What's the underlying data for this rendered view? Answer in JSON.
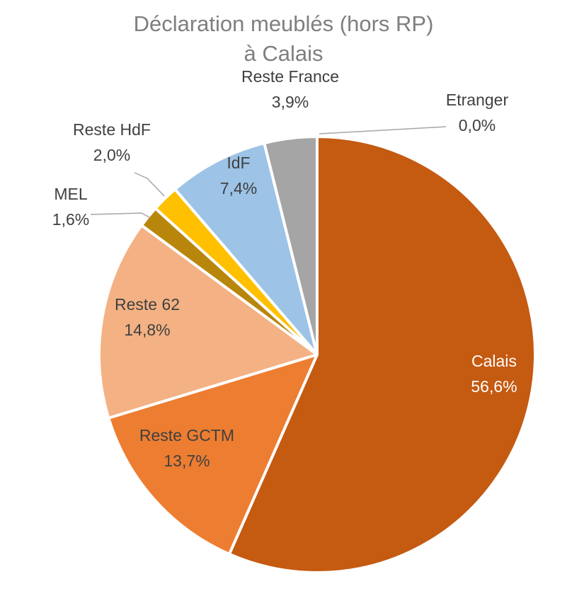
{
  "chart_data": {
    "type": "pie",
    "title_line1": "Déclaration meublés (hors RP)",
    "title_line2": "à Calais",
    "slices": [
      {
        "name": "Calais",
        "value": 56.6,
        "label": "56,6%",
        "color": "#C55A11",
        "text_color": "#ffffff"
      },
      {
        "name": "Reste GCTM",
        "value": 13.7,
        "label": "13,7%",
        "color": "#ED7D31",
        "text_color": "#404040"
      },
      {
        "name": "Reste 62",
        "value": 14.8,
        "label": "14,8%",
        "color": "#F4B183",
        "text_color": "#404040"
      },
      {
        "name": "MEL",
        "value": 1.6,
        "label": "1,6%",
        "color": "#B8860B",
        "text_color": "#404040"
      },
      {
        "name": "Reste HdF",
        "value": 2.0,
        "label": "2,0%",
        "color": "#FFC000",
        "text_color": "#404040"
      },
      {
        "name": "IdF",
        "value": 7.4,
        "label": "7,4%",
        "color": "#9DC3E6",
        "text_color": "#404040"
      },
      {
        "name": "Reste France",
        "value": 3.9,
        "label": "3,9%",
        "color": "#A5A5A5",
        "text_color": "#404040"
      },
      {
        "name": "Etranger",
        "value": 0.0,
        "label": "0,0%",
        "color": "#5B9BD5",
        "text_color": "#404040"
      }
    ]
  }
}
